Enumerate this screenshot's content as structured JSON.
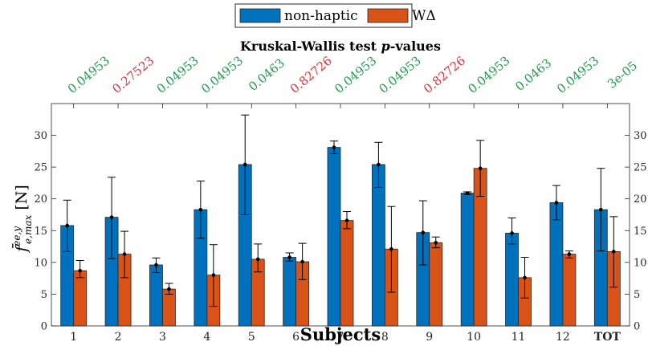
{
  "chart_data": {
    "type": "bar",
    "title": "Kruskal-Wallis test p-values",
    "xlabel": "Subjects",
    "ylabel": "f̄",
    "ylabel_sup": "ee,y",
    "ylabel_sub": "e,max",
    "ylabel_unit": " [N]",
    "categories": [
      "1",
      "2",
      "3",
      "4",
      "5",
      "6",
      "7",
      "8",
      "9",
      "10",
      "11",
      "12",
      "TOT"
    ],
    "ylim": [
      0,
      35
    ],
    "yticks": [
      0,
      5,
      10,
      15,
      20,
      25,
      30
    ],
    "legend_position": "top-center",
    "series": [
      {
        "name": "non-haptic",
        "color": "#0072BD",
        "values": [
          15.8,
          17.1,
          9.6,
          18.3,
          25.4,
          10.8,
          28.1,
          25.4,
          14.7,
          20.9,
          14.6,
          19.4,
          18.3
        ],
        "err_low": [
          11.7,
          10.6,
          8.4,
          13.8,
          17.5,
          10.2,
          27.1,
          21.8,
          9.6,
          20.7,
          12.9,
          16.7,
          11.8
        ],
        "err_high": [
          19.8,
          23.4,
          10.7,
          22.8,
          33.2,
          11.5,
          29.1,
          28.9,
          19.7,
          21.1,
          17.0,
          22.1,
          24.8
        ]
      },
      {
        "name": "WΔ",
        "color": "#D95319",
        "values": [
          8.7,
          11.3,
          5.8,
          8.0,
          10.5,
          10.1,
          16.6,
          12.1,
          13.1,
          24.8,
          7.6,
          11.3,
          11.7
        ],
        "err_low": [
          7.6,
          7.6,
          5.0,
          3.1,
          8.5,
          7.3,
          15.3,
          5.3,
          12.3,
          20.4,
          4.4,
          10.7,
          6.1
        ],
        "err_high": [
          10.3,
          14.9,
          6.7,
          12.8,
          12.9,
          13.0,
          18.0,
          18.8,
          14.0,
          29.2,
          10.8,
          11.8,
          17.2
        ]
      }
    ],
    "p_values": [
      "0.04953",
      "0.27523",
      "0.04953",
      "0.04953",
      "0.0463",
      "0.82726",
      "0.04953",
      "0.04953",
      "0.82726",
      "0.04953",
      "0.0463",
      "0.04953",
      "3e-05"
    ],
    "p_value_colors": {
      "significant": "#1E9E4B",
      "not_significant": "#E0303A"
    },
    "p_significant": [
      true,
      false,
      true,
      true,
      true,
      false,
      true,
      true,
      false,
      true,
      true,
      true,
      true
    ],
    "grid": false
  }
}
